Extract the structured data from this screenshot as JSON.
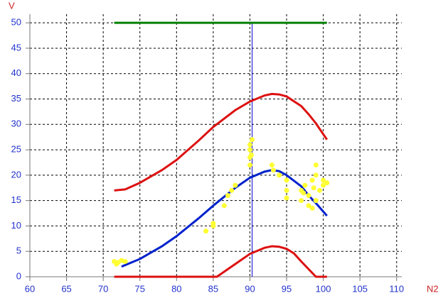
{
  "chart_data": {
    "type": "line",
    "xlabel": "N2",
    "ylabel": "V",
    "xlim": [
      60,
      110.7
    ],
    "ylim": [
      0,
      51.7
    ],
    "xticks": [
      60,
      65,
      70,
      75,
      80,
      85,
      90,
      95,
      100,
      105,
      110
    ],
    "yticks": [
      0,
      5,
      10,
      15,
      20,
      25,
      30,
      35,
      40,
      45,
      50
    ],
    "grid": true,
    "reference_x": 90.3,
    "reference_color": "#0000cc",
    "series": [
      {
        "kind": "line",
        "color": "#008000",
        "x": [
          71.5,
          100.5
        ],
        "values": [
          50,
          50
        ]
      },
      {
        "kind": "line",
        "color": "#dd1111",
        "x": [
          71.5,
          73,
          75,
          78,
          80,
          83,
          85,
          88,
          90,
          92,
          93,
          94,
          95,
          97,
          98,
          99,
          100.5
        ],
        "values": [
          17,
          17.2,
          18.5,
          21,
          23,
          26.8,
          29.5,
          32.8,
          34.5,
          35.7,
          36,
          35.9,
          35.5,
          33.6,
          32,
          30.2,
          27
        ]
      },
      {
        "kind": "line",
        "color": "#0022cc",
        "x": [
          72.5,
          75,
          78,
          80,
          83,
          85,
          88,
          90,
          92,
          93,
          94,
          95,
          97,
          98,
          99,
          100.5
        ],
        "values": [
          2,
          3.5,
          6,
          8,
          11.5,
          14,
          17.5,
          19.5,
          20.7,
          21,
          20.8,
          20,
          17.8,
          16,
          14.5,
          12
        ]
      },
      {
        "kind": "line",
        "color": "#dd1111",
        "x": [
          71.5,
          85.5,
          87,
          88,
          90,
          92,
          93,
          94,
          95,
          96,
          97,
          98,
          99,
          100.5
        ],
        "values": [
          0,
          0,
          1.5,
          2.5,
          4.5,
          5.7,
          6,
          5.9,
          5.5,
          4.6,
          3,
          1.5,
          0,
          0
        ]
      },
      {
        "kind": "scatter",
        "color": "#ffff33",
        "x": [
          71.5,
          72,
          72.5,
          73,
          71.8,
          84,
          85,
          85,
          86.5,
          87,
          87.5,
          88,
          90,
          90,
          90,
          90,
          90.2,
          90.3,
          93,
          93.2,
          94,
          95,
          95,
          95,
          97,
          97,
          97.5,
          98,
          98,
          98.5,
          98.5,
          99,
          99,
          99,
          99.5,
          100,
          100,
          100.5,
          97.3,
          98.7
        ],
        "values": [
          3,
          2.8,
          3.2,
          3,
          2.5,
          9,
          10,
          10.5,
          14,
          16,
          17,
          18,
          22,
          23.5,
          25,
          26,
          24,
          27,
          22,
          21,
          20,
          19,
          17,
          15.5,
          17,
          15,
          18,
          16,
          14,
          19,
          13.5,
          15,
          20,
          22,
          17,
          18,
          19,
          18.5,
          16.5,
          17.5
        ]
      }
    ]
  }
}
